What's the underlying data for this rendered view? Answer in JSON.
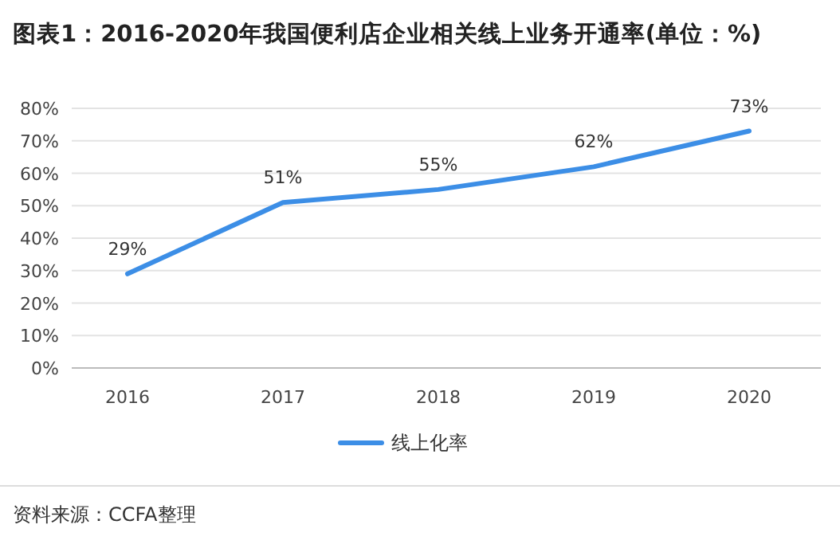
{
  "chart_data": {
    "type": "line",
    "title": "图表1：2016-2020年我国便利店企业相关线上业务开通率(单位：%)",
    "categories": [
      "2016",
      "2017",
      "2018",
      "2019",
      "2020"
    ],
    "series": [
      {
        "name": "线上化率",
        "color": "#3c8ee6",
        "values": [
          29,
          51,
          55,
          62,
          73
        ]
      }
    ],
    "ylim": [
      0,
      80
    ],
    "yticks": [
      {
        "value": 0,
        "label": "0%"
      },
      {
        "value": 10,
        "label": "10%"
      },
      {
        "value": 20,
        "label": "20%"
      },
      {
        "value": 30,
        "label": "30%"
      },
      {
        "value": 40,
        "label": "40%"
      },
      {
        "value": 50,
        "label": "50%"
      },
      {
        "value": 60,
        "label": "60%"
      },
      {
        "value": 70,
        "label": "70%"
      },
      {
        "value": 80,
        "label": "80%"
      }
    ],
    "value_labels": [
      "29%",
      "51%",
      "55%",
      "62%",
      "73%"
    ],
    "grid": "y",
    "legend": "bottom",
    "marker": "none",
    "line_style": "solid",
    "annotations": [
      "资料来源：CCFA整理"
    ]
  }
}
